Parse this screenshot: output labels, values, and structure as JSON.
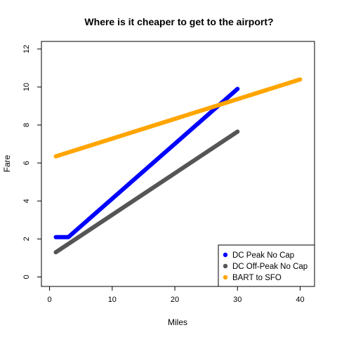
{
  "chart_data": {
    "type": "line",
    "title": "Where is it cheaper to get to the airport?",
    "xlabel": "Miles",
    "ylabel": "Fare",
    "xlim": [
      0,
      40
    ],
    "ylim": [
      0,
      12
    ],
    "xticks": [
      "0",
      "10",
      "20",
      "30",
      "40"
    ],
    "yticks": [
      "0",
      "2",
      "4",
      "6",
      "8",
      "10",
      "12"
    ],
    "grid": false,
    "legend_position": "bottom-right",
    "series": [
      {
        "name": "DC Peak No Cap",
        "color": "#0000ff",
        "x": [
          1,
          3,
          30
        ],
        "y": [
          2.1,
          2.1,
          9.9
        ]
      },
      {
        "name": "DC Off-Peak No Cap",
        "color": "#555555",
        "x": [
          1,
          30
        ],
        "y": [
          1.3,
          7.65
        ]
      },
      {
        "name": "BART to SFO",
        "color": "#ffa500",
        "x": [
          1,
          40
        ],
        "y": [
          6.35,
          10.4
        ]
      }
    ]
  }
}
